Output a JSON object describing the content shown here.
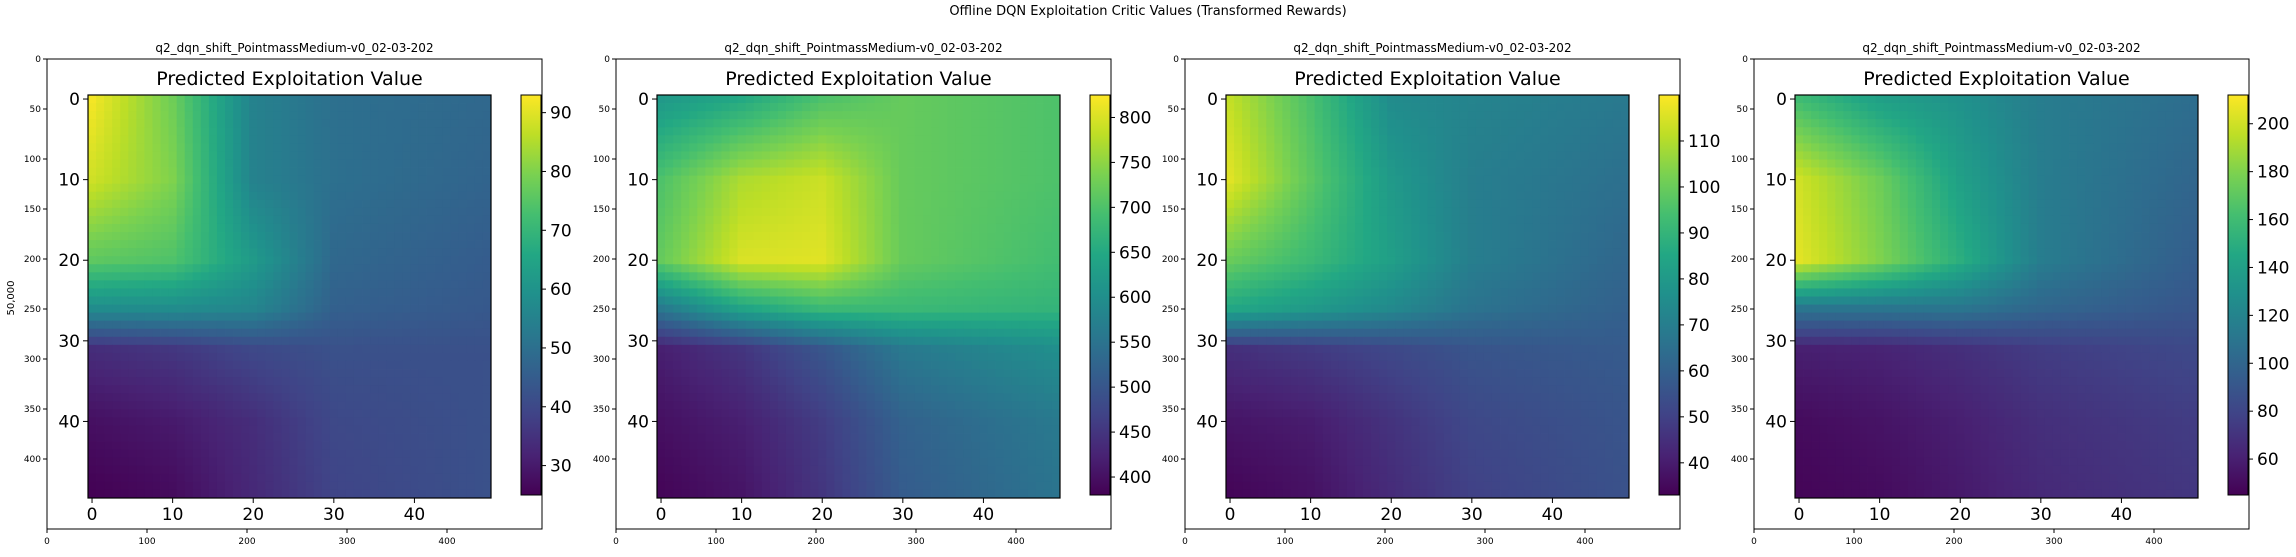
{
  "figure": {
    "suptitle": "Offline DQN Exploitation Critic Values (Transformed Rewards)",
    "outer_ylabel": "50,000"
  },
  "chart_data": [
    {
      "type": "heatmap",
      "title": "q2_dqn_shift_PointmassMedium-v0_02-03-202",
      "inner_title": "Predicted Exploitation Value",
      "outer_xticks": [
        "0",
        "100",
        "200",
        "300",
        "400"
      ],
      "outer_yticks": [
        "0",
        "50",
        "100",
        "150",
        "200",
        "250",
        "300",
        "350",
        "400"
      ],
      "xticks": [
        "0",
        "10",
        "20",
        "30",
        "40"
      ],
      "yticks": [
        "0",
        "10",
        "20",
        "30",
        "40"
      ],
      "grid_size": [
        50,
        50
      ],
      "colorbar_ticks": [
        30,
        40,
        50,
        60,
        70,
        80,
        90
      ],
      "colorbar_range": [
        25,
        93
      ],
      "stops": [
        {
          "x": 0,
          "y": 0,
          "v": 92
        },
        {
          "x": 10,
          "y": 0,
          "v": 78
        },
        {
          "x": 20,
          "y": 0,
          "v": 55
        },
        {
          "x": 30,
          "y": 0,
          "v": 50
        },
        {
          "x": 49,
          "y": 0,
          "v": 48
        },
        {
          "x": 0,
          "y": 10,
          "v": 88
        },
        {
          "x": 10,
          "y": 10,
          "v": 80
        },
        {
          "x": 20,
          "y": 10,
          "v": 55
        },
        {
          "x": 30,
          "y": 10,
          "v": 50
        },
        {
          "x": 49,
          "y": 10,
          "v": 47
        },
        {
          "x": 0,
          "y": 20,
          "v": 76
        },
        {
          "x": 10,
          "y": 20,
          "v": 74
        },
        {
          "x": 20,
          "y": 20,
          "v": 62
        },
        {
          "x": 30,
          "y": 20,
          "v": 48
        },
        {
          "x": 49,
          "y": 20,
          "v": 45
        },
        {
          "x": 0,
          "y": 26,
          "v": 58
        },
        {
          "x": 10,
          "y": 26,
          "v": 58
        },
        {
          "x": 20,
          "y": 26,
          "v": 56
        },
        {
          "x": 30,
          "y": 26,
          "v": 46
        },
        {
          "x": 49,
          "y": 26,
          "v": 44
        },
        {
          "x": 0,
          "y": 31,
          "v": 34
        },
        {
          "x": 10,
          "y": 31,
          "v": 36
        },
        {
          "x": 20,
          "y": 31,
          "v": 40
        },
        {
          "x": 30,
          "y": 31,
          "v": 42
        },
        {
          "x": 49,
          "y": 31,
          "v": 42
        },
        {
          "x": 0,
          "y": 40,
          "v": 28
        },
        {
          "x": 10,
          "y": 40,
          "v": 30
        },
        {
          "x": 20,
          "y": 40,
          "v": 34
        },
        {
          "x": 30,
          "y": 40,
          "v": 40
        },
        {
          "x": 49,
          "y": 40,
          "v": 42
        },
        {
          "x": 0,
          "y": 49,
          "v": 25
        },
        {
          "x": 10,
          "y": 49,
          "v": 27
        },
        {
          "x": 20,
          "y": 49,
          "v": 33
        },
        {
          "x": 30,
          "y": 49,
          "v": 39
        },
        {
          "x": 49,
          "y": 49,
          "v": 42
        }
      ]
    },
    {
      "type": "heatmap",
      "title": "q2_dqn_shift_PointmassMedium-v0_02-03-202",
      "inner_title": "Predicted Exploitation Value",
      "outer_xticks": [
        "0",
        "100",
        "200",
        "300",
        "400"
      ],
      "outer_yticks": [
        "0",
        "50",
        "100",
        "150",
        "200",
        "250",
        "300",
        "350",
        "400"
      ],
      "xticks": [
        "0",
        "10",
        "20",
        "30",
        "40"
      ],
      "yticks": [
        "0",
        "10",
        "20",
        "30",
        "40"
      ],
      "grid_size": [
        50,
        50
      ],
      "colorbar_ticks": [
        400,
        450,
        500,
        550,
        600,
        650,
        700,
        750,
        800
      ],
      "colorbar_range": [
        380,
        825
      ],
      "stops": [
        {
          "x": 0,
          "y": 0,
          "v": 620
        },
        {
          "x": 10,
          "y": 0,
          "v": 650
        },
        {
          "x": 20,
          "y": 0,
          "v": 700
        },
        {
          "x": 30,
          "y": 0,
          "v": 720
        },
        {
          "x": 49,
          "y": 0,
          "v": 700
        },
        {
          "x": 0,
          "y": 10,
          "v": 700
        },
        {
          "x": 10,
          "y": 10,
          "v": 770
        },
        {
          "x": 20,
          "y": 10,
          "v": 790
        },
        {
          "x": 30,
          "y": 10,
          "v": 720
        },
        {
          "x": 49,
          "y": 10,
          "v": 700
        },
        {
          "x": 0,
          "y": 20,
          "v": 720
        },
        {
          "x": 10,
          "y": 20,
          "v": 800
        },
        {
          "x": 20,
          "y": 20,
          "v": 805
        },
        {
          "x": 30,
          "y": 20,
          "v": 720
        },
        {
          "x": 49,
          "y": 20,
          "v": 690
        },
        {
          "x": 0,
          "y": 26,
          "v": 560
        },
        {
          "x": 10,
          "y": 26,
          "v": 640
        },
        {
          "x": 20,
          "y": 26,
          "v": 680
        },
        {
          "x": 30,
          "y": 26,
          "v": 680
        },
        {
          "x": 49,
          "y": 26,
          "v": 670
        },
        {
          "x": 0,
          "y": 31,
          "v": 420
        },
        {
          "x": 10,
          "y": 31,
          "v": 450
        },
        {
          "x": 20,
          "y": 31,
          "v": 500
        },
        {
          "x": 30,
          "y": 31,
          "v": 560
        },
        {
          "x": 49,
          "y": 31,
          "v": 600
        },
        {
          "x": 0,
          "y": 40,
          "v": 400
        },
        {
          "x": 10,
          "y": 40,
          "v": 420
        },
        {
          "x": 20,
          "y": 40,
          "v": 460
        },
        {
          "x": 30,
          "y": 40,
          "v": 520
        },
        {
          "x": 49,
          "y": 40,
          "v": 560
        },
        {
          "x": 0,
          "y": 49,
          "v": 385
        },
        {
          "x": 10,
          "y": 49,
          "v": 405
        },
        {
          "x": 20,
          "y": 49,
          "v": 450
        },
        {
          "x": 30,
          "y": 49,
          "v": 510
        },
        {
          "x": 49,
          "y": 49,
          "v": 550
        }
      ]
    },
    {
      "type": "heatmap",
      "title": "q2_dqn_shift_PointmassMedium-v0_02-03-202",
      "inner_title": "Predicted Exploitation Value",
      "outer_xticks": [
        "0",
        "100",
        "200",
        "300",
        "400"
      ],
      "outer_yticks": [
        "0",
        "50",
        "100",
        "150",
        "200",
        "250",
        "300",
        "350",
        "400"
      ],
      "xticks": [
        "0",
        "10",
        "20",
        "30",
        "40"
      ],
      "yticks": [
        "0",
        "10",
        "20",
        "30",
        "40"
      ],
      "grid_size": [
        50,
        50
      ],
      "colorbar_ticks": [
        40,
        50,
        60,
        70,
        80,
        90,
        100,
        110
      ],
      "colorbar_range": [
        33,
        120
      ],
      "stops": [
        {
          "x": 0,
          "y": 0,
          "v": 112
        },
        {
          "x": 10,
          "y": 0,
          "v": 95
        },
        {
          "x": 20,
          "y": 0,
          "v": 75
        },
        {
          "x": 30,
          "y": 0,
          "v": 72
        },
        {
          "x": 49,
          "y": 0,
          "v": 68
        },
        {
          "x": 0,
          "y": 10,
          "v": 116
        },
        {
          "x": 10,
          "y": 10,
          "v": 98
        },
        {
          "x": 20,
          "y": 10,
          "v": 80
        },
        {
          "x": 30,
          "y": 10,
          "v": 70
        },
        {
          "x": 49,
          "y": 10,
          "v": 65
        },
        {
          "x": 0,
          "y": 20,
          "v": 100
        },
        {
          "x": 10,
          "y": 20,
          "v": 92
        },
        {
          "x": 20,
          "y": 20,
          "v": 82
        },
        {
          "x": 30,
          "y": 20,
          "v": 70
        },
        {
          "x": 49,
          "y": 20,
          "v": 62
        },
        {
          "x": 0,
          "y": 26,
          "v": 85
        },
        {
          "x": 10,
          "y": 26,
          "v": 80
        },
        {
          "x": 20,
          "y": 26,
          "v": 74
        },
        {
          "x": 30,
          "y": 26,
          "v": 66
        },
        {
          "x": 49,
          "y": 26,
          "v": 60
        },
        {
          "x": 0,
          "y": 31,
          "v": 45
        },
        {
          "x": 10,
          "y": 31,
          "v": 48
        },
        {
          "x": 20,
          "y": 31,
          "v": 52
        },
        {
          "x": 30,
          "y": 31,
          "v": 56
        },
        {
          "x": 49,
          "y": 31,
          "v": 58
        },
        {
          "x": 0,
          "y": 40,
          "v": 38
        },
        {
          "x": 10,
          "y": 40,
          "v": 40
        },
        {
          "x": 20,
          "y": 40,
          "v": 46
        },
        {
          "x": 30,
          "y": 40,
          "v": 52
        },
        {
          "x": 49,
          "y": 40,
          "v": 56
        },
        {
          "x": 0,
          "y": 49,
          "v": 34
        },
        {
          "x": 10,
          "y": 49,
          "v": 37
        },
        {
          "x": 20,
          "y": 49,
          "v": 44
        },
        {
          "x": 30,
          "y": 49,
          "v": 50
        },
        {
          "x": 49,
          "y": 49,
          "v": 55
        }
      ]
    },
    {
      "type": "heatmap",
      "title": "q2_dqn_shift_PointmassMedium-v0_02-03-202",
      "inner_title": "Predicted Exploitation Value",
      "outer_xticks": [
        "0",
        "100",
        "200",
        "300",
        "400"
      ],
      "outer_yticks": [
        "0",
        "50",
        "100",
        "150",
        "200",
        "250",
        "300",
        "350",
        "400"
      ],
      "xticks": [
        "0",
        "10",
        "20",
        "30",
        "40"
      ],
      "yticks": [
        "0",
        "10",
        "20",
        "30",
        "40"
      ],
      "grid_size": [
        50,
        50
      ],
      "colorbar_ticks": [
        60,
        80,
        100,
        120,
        140,
        160,
        180,
        200
      ],
      "colorbar_range": [
        45,
        212
      ],
      "stops": [
        {
          "x": 0,
          "y": 0,
          "v": 160
        },
        {
          "x": 10,
          "y": 0,
          "v": 140
        },
        {
          "x": 20,
          "y": 0,
          "v": 130
        },
        {
          "x": 30,
          "y": 0,
          "v": 115
        },
        {
          "x": 49,
          "y": 0,
          "v": 105
        },
        {
          "x": 0,
          "y": 10,
          "v": 200
        },
        {
          "x": 10,
          "y": 10,
          "v": 175
        },
        {
          "x": 20,
          "y": 10,
          "v": 140
        },
        {
          "x": 30,
          "y": 10,
          "v": 115
        },
        {
          "x": 49,
          "y": 10,
          "v": 100
        },
        {
          "x": 0,
          "y": 20,
          "v": 205
        },
        {
          "x": 10,
          "y": 20,
          "v": 180
        },
        {
          "x": 20,
          "y": 20,
          "v": 150
        },
        {
          "x": 30,
          "y": 20,
          "v": 115
        },
        {
          "x": 49,
          "y": 20,
          "v": 95
        },
        {
          "x": 0,
          "y": 26,
          "v": 110
        },
        {
          "x": 10,
          "y": 26,
          "v": 110
        },
        {
          "x": 20,
          "y": 26,
          "v": 110
        },
        {
          "x": 30,
          "y": 26,
          "v": 100
        },
        {
          "x": 49,
          "y": 26,
          "v": 90
        },
        {
          "x": 0,
          "y": 31,
          "v": 60
        },
        {
          "x": 10,
          "y": 31,
          "v": 62
        },
        {
          "x": 20,
          "y": 31,
          "v": 68
        },
        {
          "x": 30,
          "y": 31,
          "v": 75
        },
        {
          "x": 49,
          "y": 31,
          "v": 82
        },
        {
          "x": 0,
          "y": 40,
          "v": 50
        },
        {
          "x": 10,
          "y": 40,
          "v": 54
        },
        {
          "x": 20,
          "y": 40,
          "v": 60
        },
        {
          "x": 30,
          "y": 40,
          "v": 68
        },
        {
          "x": 49,
          "y": 40,
          "v": 75
        },
        {
          "x": 0,
          "y": 49,
          "v": 47
        },
        {
          "x": 10,
          "y": 49,
          "v": 50
        },
        {
          "x": 20,
          "y": 49,
          "v": 57
        },
        {
          "x": 30,
          "y": 49,
          "v": 65
        },
        {
          "x": 49,
          "y": 49,
          "v": 72
        }
      ]
    }
  ]
}
